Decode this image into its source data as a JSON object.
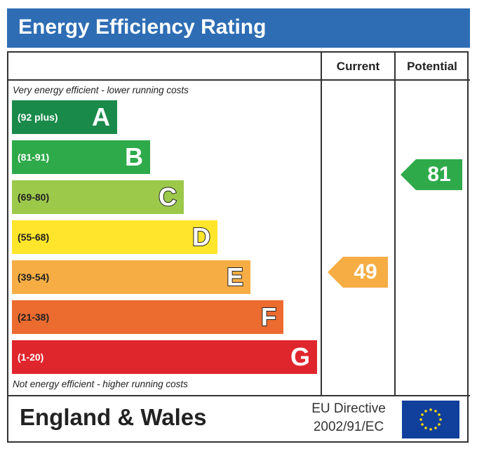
{
  "header": {
    "title": "Energy Efficiency Rating"
  },
  "columns": {
    "current": "Current",
    "potential": "Potential"
  },
  "captions": {
    "top": "Very energy efficient - lower running costs",
    "bottom": "Not energy efficient - higher running costs"
  },
  "bands": [
    {
      "range": "(92 plus)",
      "letter": "A",
      "color": "#1a8a4a"
    },
    {
      "range": "(81-91)",
      "letter": "B",
      "color": "#2eaa4a"
    },
    {
      "range": "(69-80)",
      "letter": "C",
      "color": "#9cc94a"
    },
    {
      "range": "(55-68)",
      "letter": "D",
      "color": "#ffe52b"
    },
    {
      "range": "(39-54)",
      "letter": "E",
      "color": "#f6ad44"
    },
    {
      "range": "(21-38)",
      "letter": "F",
      "color": "#ec6b2f"
    },
    {
      "range": "(1-20)",
      "letter": "G",
      "color": "#e0262d"
    }
  ],
  "ratings": {
    "current": {
      "value": "49",
      "color": "#f6ad44"
    },
    "potential": {
      "value": "81",
      "color": "#2eaa4a"
    }
  },
  "footer": {
    "country": "England & Wales",
    "directive_line1": "EU Directive",
    "directive_line2": "2002/91/EC",
    "flag_icon": "eu-flag-icon"
  }
}
